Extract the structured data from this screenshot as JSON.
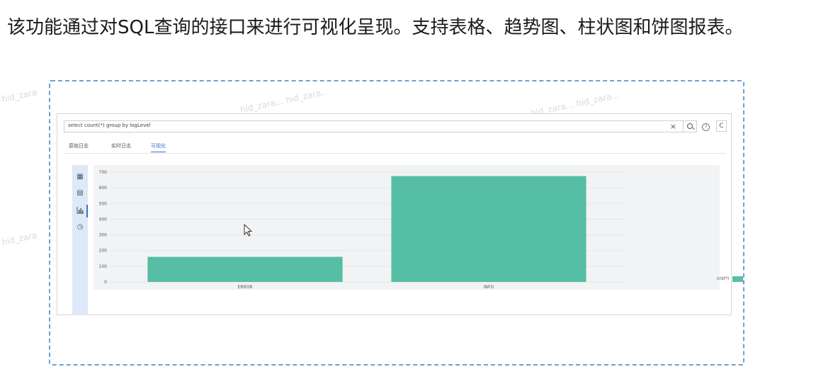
{
  "intro": {
    "text": "该功能通过对SQL查询的接口来进行可视化呈现。支持表格、趋势图、柱状图和饼图报表。"
  },
  "watermark": "hid_zara... hid_zara...",
  "watermark_short": "hid_zara",
  "query": {
    "value": "select count(*) group by logLevel",
    "clear_icon": "×",
    "help_icon": "?",
    "refresh_icon": "C"
  },
  "tabs": [
    {
      "label": "原始日志"
    },
    {
      "label": "实时日志"
    },
    {
      "label": "可视化"
    }
  ],
  "active_tab": 2,
  "sidebar_icons": [
    "table-icon",
    "trend-chart-icon",
    "bar-chart-icon",
    "pie-chart-icon"
  ],
  "colors": {
    "bar": "#56bea5",
    "accent": "#3d6fd3",
    "sidebar": "#dde9f7"
  },
  "chart_data": {
    "type": "bar",
    "categories": [
      "ERROR",
      "INFO"
    ],
    "series": [
      {
        "name": "cnt(*)",
        "values": [
          160,
          675
        ]
      }
    ],
    "ylim": [
      0,
      700
    ],
    "yticks": [
      0,
      100,
      200,
      300,
      400,
      500,
      600,
      700
    ],
    "grid": true,
    "legend": "right"
  }
}
